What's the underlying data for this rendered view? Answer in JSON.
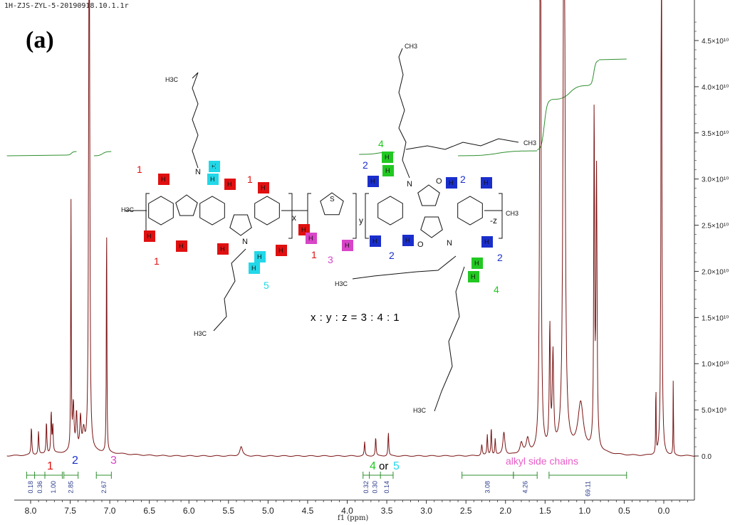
{
  "file_label": "1H-ZJS-ZYL-5-20190918.10.1.1r",
  "panel_label": "(a)",
  "ratio_text": "x : y : z = 3 : 4 : 1",
  "colors": {
    "spectrum": "#7a1414",
    "integral": "#2f8f2f",
    "red": "#e01010",
    "blue": "#1a2ecc",
    "magenta": "#d845c8",
    "green": "#22c822",
    "cyan": "#22d8e8"
  },
  "structure_labels": {
    "red_group": "1",
    "blue_group": "2",
    "magenta_group": "3",
    "green_group": "4",
    "cyan_group": "5",
    "x": "x",
    "y": "y",
    "z": "-z",
    "S": "S",
    "N": "N",
    "O": "O",
    "H": "H",
    "CH3": "CH3",
    "H3C": "H3C"
  },
  "bottom_annotations": {
    "g1": "1",
    "g2": "2",
    "g3": "3",
    "g45a": "4",
    "or": "or",
    "g45b": "5",
    "alkyl": "alkyl side chains"
  },
  "chart_data": {
    "type": "line",
    "title": "",
    "xlabel": "f1 (ppm)",
    "ylabel": "",
    "x_reversed": true,
    "xlim": [
      8.3,
      -0.4
    ],
    "ylim": [
      -1200000000.0,
      48000000000.0
    ],
    "x_ticks": [
      "8.0",
      "7.5",
      "7.0",
      "6.5",
      "6.0",
      "5.5",
      "5.0",
      "4.5",
      "4.0",
      "3.5",
      "3.0",
      "2.5",
      "2.0",
      "1.5",
      "1.0",
      "0.5",
      "0.0"
    ],
    "x_tick_values": [
      8.0,
      7.5,
      7.0,
      6.5,
      6.0,
      5.5,
      5.0,
      4.5,
      4.0,
      3.5,
      3.0,
      2.5,
      2.0,
      1.5,
      1.0,
      0.5,
      0.0
    ],
    "y_ticks": [
      "0.0",
      "5.0×10⁹",
      "1.0×10¹⁰",
      "1.5×10¹⁰",
      "2.0×10¹⁰",
      "2.5×10¹⁰",
      "3.0×10¹⁰",
      "3.5×10¹⁰",
      "4.0×10¹⁰",
      "4.5×10¹⁰"
    ],
    "y_tick_values": [
      0,
      5000000000.0,
      10000000000.0,
      15000000000.0,
      20000000000.0,
      25000000000.0,
      30000000000.0,
      35000000000.0,
      40000000000.0,
      45000000000.0
    ],
    "peaks": [
      {
        "ppm": 7.99,
        "h": 3000000000.0,
        "w": 0.006
      },
      {
        "ppm": 7.9,
        "h": 2500000000.0,
        "w": 0.006
      },
      {
        "ppm": 7.8,
        "h": 3500000000.0,
        "w": 0.006
      },
      {
        "ppm": 7.74,
        "h": 4500000000.0,
        "w": 0.006
      },
      {
        "ppm": 7.72,
        "h": 3000000000.0,
        "w": 0.006
      },
      {
        "ppm": 7.49,
        "h": 27500000000.0,
        "w": 0.004
      },
      {
        "ppm": 7.46,
        "h": 5000000000.0,
        "w": 0.01
      },
      {
        "ppm": 7.42,
        "h": 4000000000.0,
        "w": 0.01
      },
      {
        "ppm": 7.37,
        "h": 3500000000.0,
        "w": 0.01
      },
      {
        "ppm": 7.33,
        "h": 2000000000.0,
        "w": 0.015
      },
      {
        "ppm": 7.26,
        "h": 95000000000.0,
        "w": 0.006
      },
      {
        "ppm": 7.04,
        "h": 26500000000.0,
        "w": 0.004
      },
      {
        "ppm": 5.34,
        "h": 1000000000.0,
        "w": 0.02
      },
      {
        "ppm": 3.78,
        "h": 1500000000.0,
        "w": 0.006
      },
      {
        "ppm": 3.64,
        "h": 2000000000.0,
        "w": 0.006
      },
      {
        "ppm": 3.48,
        "h": 2500000000.0,
        "w": 0.006
      },
      {
        "ppm": 2.3,
        "h": 1200000000.0,
        "w": 0.008
      },
      {
        "ppm": 2.23,
        "h": 2200000000.0,
        "w": 0.006
      },
      {
        "ppm": 2.18,
        "h": 3000000000.0,
        "w": 0.006
      },
      {
        "ppm": 2.13,
        "h": 1800000000.0,
        "w": 0.006
      },
      {
        "ppm": 2.02,
        "h": 2500000000.0,
        "w": 0.015
      },
      {
        "ppm": 1.8,
        "h": 1200000000.0,
        "w": 0.02
      },
      {
        "ppm": 1.72,
        "h": 1500000000.0,
        "w": 0.02
      },
      {
        "ppm": 1.56,
        "h": 80000000000.0,
        "w": 0.008
      },
      {
        "ppm": 1.44,
        "h": 13000000000.0,
        "w": 0.008
      },
      {
        "ppm": 1.4,
        "h": 10000000000.0,
        "w": 0.01
      },
      {
        "ppm": 1.26,
        "h": 80000000000.0,
        "w": 0.012
      },
      {
        "ppm": 1.05,
        "h": 5000000000.0,
        "w": 0.04
      },
      {
        "ppm": 0.88,
        "h": 37000000000.0,
        "w": 0.006
      },
      {
        "ppm": 0.85,
        "h": 30000000000.0,
        "w": 0.008
      },
      {
        "ppm": 0.1,
        "h": 8500000000.0,
        "w": 0.003
      },
      {
        "ppm": 0.03,
        "h": 70000000000.0,
        "w": 0.006
      },
      {
        "ppm": -0.12,
        "h": 8500000000.0,
        "w": 0.003
      }
    ],
    "integrals": [
      {
        "from": 8.05,
        "to": 7.6,
        "values": [
          "0.18",
          "0.36",
          "1.00"
        ],
        "bounds": [
          8.05,
          7.95,
          7.82,
          7.6
        ]
      },
      {
        "from": 7.58,
        "to": 7.4,
        "values": [
          "2.85"
        ]
      },
      {
        "from": 7.17,
        "to": 6.98,
        "values": [
          "2.67"
        ]
      },
      {
        "from": 3.8,
        "to": 3.42,
        "values": [
          "0.32",
          "0.30",
          "0.14"
        ],
        "bounds": [
          3.8,
          3.72,
          3.58,
          3.42
        ]
      },
      {
        "from": 2.55,
        "to": 1.9,
        "values": [
          "3.08"
        ]
      },
      {
        "from": 1.9,
        "to": 1.6,
        "values": [
          "4.26"
        ]
      },
      {
        "from": 1.45,
        "to": 0.47,
        "values": [
          "69.11"
        ]
      }
    ]
  }
}
